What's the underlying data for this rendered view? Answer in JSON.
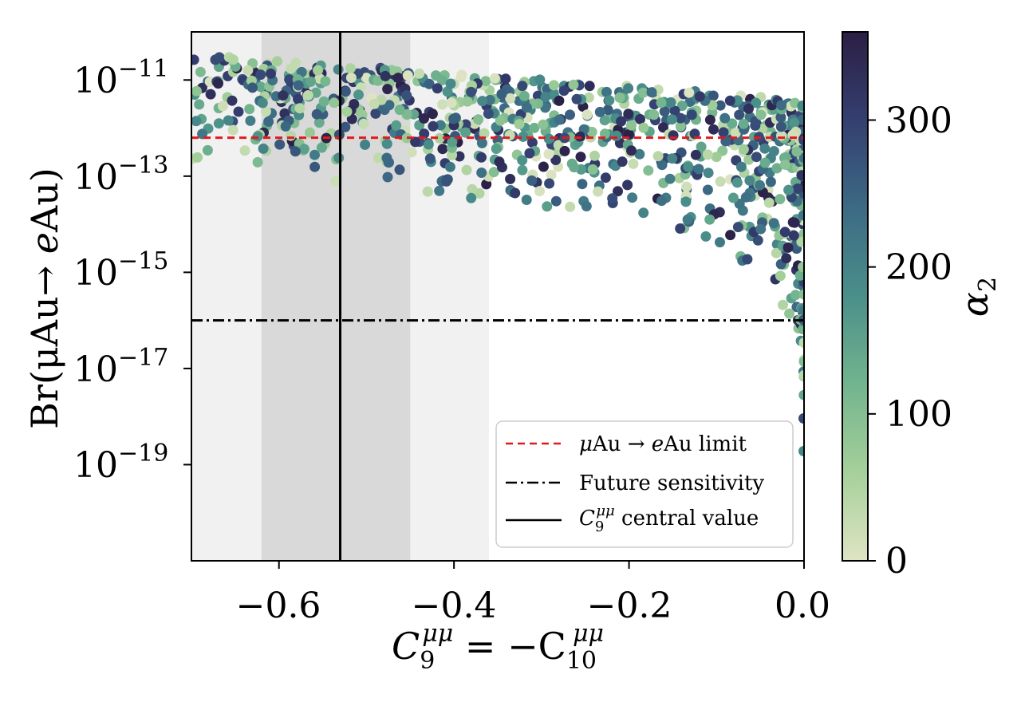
{
  "chart_data": {
    "type": "scatter",
    "title": "",
    "xlabel": {
      "base": "C",
      "sub9": "9",
      "sup": "μμ",
      "eq": " = −C",
      "sub10": "10",
      "sup2": "μμ"
    },
    "ylabel": {
      "prefix": "Br(",
      "mid": "μAu→ ",
      "e": "e",
      "suffix": "Au)"
    },
    "xlim": [
      -0.7,
      0.0
    ],
    "ylog_range": [
      -21,
      -10
    ],
    "x_ticks": [
      {
        "value": -0.6,
        "label": "−0.6"
      },
      {
        "value": -0.4,
        "label": "−0.4"
      },
      {
        "value": -0.2,
        "label": "−0.2"
      },
      {
        "value": 0.0,
        "label": "0.0"
      }
    ],
    "y_ticks": [
      {
        "exp": -11,
        "base": "10",
        "sup": "−11"
      },
      {
        "exp": -13,
        "base": "10",
        "sup": "−13"
      },
      {
        "exp": -15,
        "base": "10",
        "sup": "−15"
      },
      {
        "exp": -17,
        "base": "10",
        "sup": "−17"
      },
      {
        "exp": -19,
        "base": "10",
        "sup": "−19"
      }
    ],
    "bands": [
      {
        "name": "2-sigma",
        "x": [
          -0.7,
          -0.36
        ],
        "color": "#f1f1f1"
      },
      {
        "name": "1-sigma",
        "x": [
          -0.62,
          -0.45
        ],
        "color": "#d9d9d9"
      }
    ],
    "reference_lines": [
      {
        "name": "limit",
        "orientation": "horizontal",
        "log10_y": -12.2,
        "color": "#e31a1c",
        "style": "dashed"
      },
      {
        "name": "future",
        "orientation": "horizontal",
        "log10_y": -16.0,
        "color": "#000000",
        "style": "dashdot"
      },
      {
        "name": "central",
        "orientation": "vertical",
        "x": -0.53,
        "color": "#000000",
        "style": "solid"
      }
    ],
    "scatter_model": {
      "n_points": 900,
      "upper_log10": "-10.5 + 1.0*x/0.7 … ≈ -10.5 at x=-0.7, -11.4 at x=0",
      "lower_log10": "≈ -12.8 at x=-0.7, -13.9 at x=-0.2, -15.5 at x=-0.02, -21 at x→0",
      "color_variable": "alpha_2",
      "color_range": [
        0,
        360
      ]
    },
    "legend": {
      "position": "lower-right",
      "entries": [
        {
          "name": "limit",
          "text_mu": "μ",
          "text": "Au → ",
          "text_e": "e",
          "text_end": "Au limit"
        },
        {
          "name": "future",
          "text": "Future sensitivity"
        },
        {
          "name": "central",
          "text_c": "C",
          "text_sub": "9",
          "text_sup": "μμ",
          "text": " central value"
        }
      ]
    },
    "colorbar": {
      "label": "α",
      "label_sub": "2",
      "range": [
        0,
        360
      ],
      "ticks": [
        {
          "value": 0,
          "label": "0"
        },
        {
          "value": 100,
          "label": "100"
        },
        {
          "value": 200,
          "label": "200"
        },
        {
          "value": 300,
          "label": "300"
        }
      ],
      "colors": [
        "#dfe4c4",
        "#a6d09a",
        "#72b48e",
        "#4a8f8a",
        "#3c6a84",
        "#343f70",
        "#2b1f44"
      ]
    }
  }
}
